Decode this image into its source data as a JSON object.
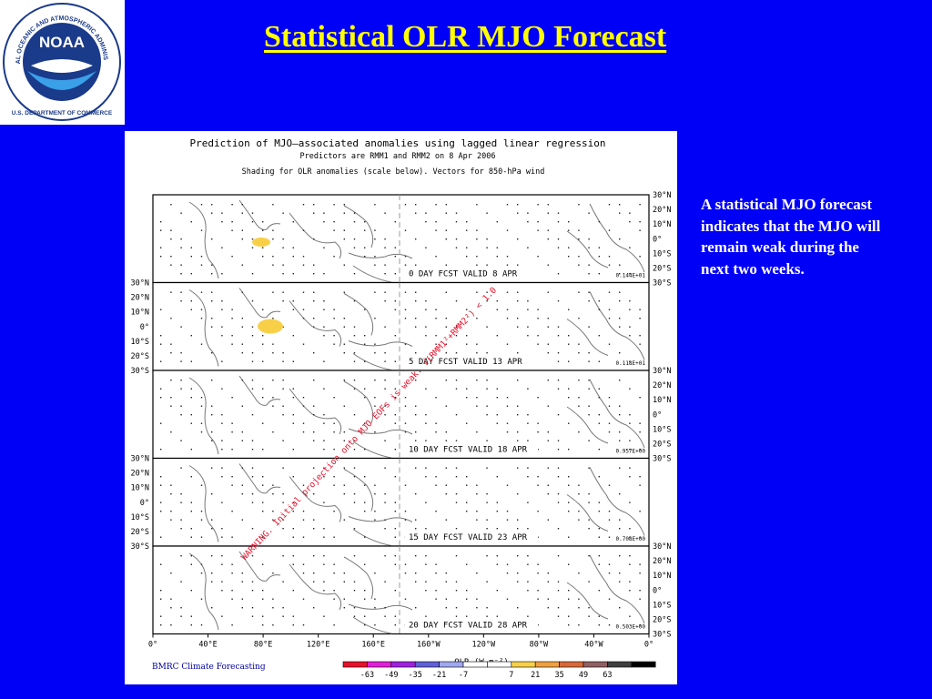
{
  "slide": {
    "title": "Statistical OLR MJO Forecast",
    "side_text": "A statistical MJO forecast indicates that the MJO will remain weak during the next two weeks.",
    "background_color": "#0000f6",
    "title_color": "#ffff00"
  },
  "logo": {
    "text": "NOAA",
    "ring_text": "NATIONAL OCEANIC AND ATMOSPHERIC ADMINISTRATION",
    "bottom_text": "U.S. DEPARTMENT OF COMMERCE"
  },
  "figure": {
    "title": "Prediction of MJO—associated anomalies using lagged linear regression",
    "subtitle": "Predictors are RMM1 and RMM2 on  8 Apr 2006",
    "note": "Shading for OLR anomalies (scale below). Vectors for 850-hPa wind",
    "lat_labels": [
      "30°N",
      "20°N",
      "10°N",
      "0°",
      "10°S",
      "20°S",
      "30°S"
    ],
    "lon_labels": [
      "0°",
      "40°E",
      "80°E",
      "120°E",
      "160°E",
      "160°W",
      "120°W",
      "80°W",
      "40°W",
      "0°"
    ],
    "panels": [
      {
        "label": "0 DAY FCST VALID  8 APR",
        "scale": "0.144E+01"
      },
      {
        "label": "5 DAY FCST VALID 13 APR",
        "scale": "0.118E+01"
      },
      {
        "label": "10 DAY FCST VALID 18 APR",
        "scale": "0.957E+00"
      },
      {
        "label": "15 DAY FCST VALID 23 APR",
        "scale": "0.708E+00"
      },
      {
        "label": "20 DAY FCST VALID 28 APR",
        "scale": "0.503E+00"
      }
    ],
    "warning": "WARNING. Initial projection onto MJO EOFs is weak. √(RMM1²+RMM2²) < 1.0",
    "olr_label": "OLR (W m⁻²)",
    "credit": "BMRC Climate Forecasting",
    "colorbar": {
      "colors": [
        "#e8102a",
        "#e020d8",
        "#a020e0",
        "#6060d8",
        "#a0a8f0",
        "#ffffff",
        "#ffffff",
        "#f8d048",
        "#f0a040",
        "#d86838",
        "#906060",
        "#404040",
        "#000000"
      ],
      "ticks": [
        "-63",
        "-49",
        "-35",
        "-21",
        "-7",
        "7",
        "21",
        "35",
        "49",
        "63"
      ]
    }
  }
}
